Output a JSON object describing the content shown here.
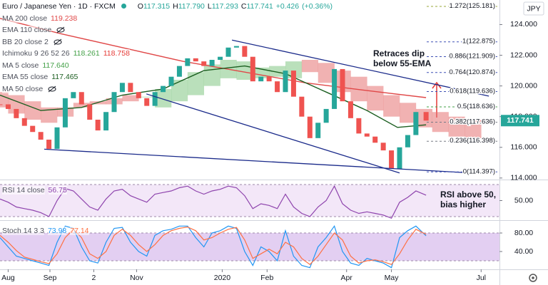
{
  "chart_data": [
    {
      "type": "candlestick",
      "title": "Euro / Japanese Yen · 1D · FXCM",
      "ohlc_labels": [
        "O",
        "H",
        "L",
        "C"
      ],
      "ohlc": [
        117.315,
        {
          "value": 117.79,
          "label": "117.790"
        },
        117.293,
        117.741
      ],
      "change": {
        "value": 0.426,
        "label": "+0.426"
      },
      "change_pct": {
        "value": 0.36,
        "label": "(+0.36%)"
      },
      "currency": "JPY",
      "last_price": 117.741,
      "up_color": "#26a69a",
      "down_color": "#ef5350",
      "xlim": [
        0,
        245
      ],
      "ylim": [
        113.9,
        125.6
      ],
      "yticks": [
        {
          "value": 114,
          "label": "114.000"
        },
        {
          "value": 116,
          "label": "116.000"
        },
        {
          "value": 118,
          "label": "118.000"
        },
        {
          "value": 120,
          "label": "120.000"
        },
        {
          "value": 122,
          "label": "122.000"
        },
        {
          "value": 124,
          "label": "124.000"
        }
      ],
      "x": [
        0,
        4,
        8,
        12,
        16,
        20,
        24,
        28,
        32,
        36,
        40,
        44,
        48,
        52,
        56,
        60,
        64,
        68,
        72,
        76,
        80,
        84,
        88,
        92,
        96,
        100,
        104,
        108,
        112,
        116,
        120,
        124,
        128,
        132,
        136,
        140,
        144,
        148,
        152,
        156,
        160,
        164,
        168,
        172,
        176,
        180,
        184,
        188,
        192,
        196,
        200,
        204,
        209
      ],
      "values": [
        118.8,
        118.5,
        117.9,
        117.4,
        117.0,
        116.5,
        115.9,
        117.3,
        119.2,
        119.6,
        118.8,
        117.8,
        117.1,
        118.3,
        119.6,
        120.2,
        119.6,
        119.2,
        118.7,
        119.6,
        120.0,
        120.6,
        121.3,
        121.8,
        121.6,
        121.3,
        121.7,
        121.9,
        122.5,
        122.6,
        121.9,
        120.3,
        120.6,
        120.3,
        119.6,
        121.0,
        119.3,
        118.0,
        116.6,
        117.6,
        118.5,
        121.1,
        119.0,
        117.9,
        116.9,
        116.7,
        116.3,
        115.8,
        114.6,
        116.0,
        116.8,
        118.3,
        117.741
      ],
      "series": [
        {
          "name": "MA 200 close",
          "color": "#e04848",
          "last": [
            119.238
          ],
          "x": [
            0,
            30,
            60,
            90,
            120,
            150,
            180,
            209
          ],
          "values": [
            124.4,
            123.4,
            122.5,
            121.6,
            120.9,
            120.2,
            119.7,
            119.24
          ]
        },
        {
          "name": "EMA 110 close",
          "hidden": true
        },
        {
          "name": "BB 20 close 2",
          "hidden": true
        },
        {
          "name": "Ichimoku 9 26 52 26",
          "last": [
            118.261,
            118.758
          ],
          "value_colors": [
            "#43a047",
            "#e53935"
          ],
          "up_color": "#81c784",
          "down_color": "#e57373",
          "x": [
            0,
            8,
            16,
            24,
            32,
            40,
            48,
            56,
            64,
            72,
            80,
            88,
            96,
            104,
            112,
            120,
            128,
            136,
            144,
            152,
            160,
            168,
            176,
            184,
            192,
            200,
            208,
            216,
            224,
            232
          ],
          "span_a": [
            118.6,
            118.2,
            117.8,
            117.6,
            118.0,
            118.6,
            118.8,
            118.8,
            119.0,
            119.3,
            119.8,
            120.4,
            120.9,
            121.4,
            121.7,
            121.6,
            121.2,
            121.3,
            121.6,
            120.9,
            120.2,
            119.6,
            119.0,
            118.4,
            118.0,
            117.6,
            117.3,
            117.0,
            116.7,
            116.6
          ],
          "span_b": [
            119.6,
            119.4,
            119.0,
            118.6,
            118.6,
            118.9,
            119.0,
            119.2,
            119.4,
            119.3,
            118.6,
            119.0,
            119.4,
            120.0,
            120.5,
            120.4,
            120.5,
            120.6,
            120.5,
            121.7,
            121.5,
            121.0,
            120.6,
            120.0,
            119.4,
            118.9,
            118.5,
            118.3,
            118.0,
            117.8
          ]
        },
        {
          "name": "MA 5 close",
          "color": "#43a047",
          "last": [
            {
              "value": 117.64,
              "label": "117.640"
            }
          ]
        },
        {
          "name": "EMA 55 close",
          "color": "#1b5e20",
          "last": [
            117.465
          ],
          "x": [
            0,
            20,
            40,
            60,
            80,
            100,
            120,
            140,
            160,
            180,
            195,
            209
          ],
          "values": [
            119.4,
            118.4,
            118.6,
            119.4,
            119.8,
            121.0,
            121.3,
            120.8,
            119.6,
            118.4,
            117.3,
            117.465
          ]
        },
        {
          "name": "MA 50 close",
          "hidden": true
        }
      ],
      "trendlines": [
        {
          "x": [
            113.8,
            239.8
          ],
          "y": [
            122.99,
            119.34
          ]
        },
        {
          "x": [
            71.8,
            196
          ],
          "y": [
            119.48,
            114.33
          ]
        },
        {
          "x": [
            21.7,
            231
          ],
          "y": [
            115.88,
            114.33
          ]
        }
      ],
      "trendline_color": "#1a2a8a",
      "fib_levels": [
        {
          "value": 125.181,
          "label": "1.272(125.181)",
          "color": "#9aa83a"
        },
        {
          "value": 122.875,
          "label": "1(122.875)",
          "color": "#3f51b5"
        },
        {
          "value": 121.909,
          "label": "0.886(121.909)",
          "color": "#3f51b5"
        },
        {
          "value": 120.874,
          "label": "0.764(120.874)",
          "color": "#3f51b5"
        },
        {
          "value": 119.636,
          "label": "0.618(119.636)",
          "color": "#3f51b5"
        },
        {
          "value": 118.636,
          "label": "0.5(118.636)",
          "color": "#43a047"
        },
        {
          "value": 117.636,
          "label": "0.382(117.636)",
          "color": "#787b86"
        },
        {
          "value": 116.398,
          "label": "0.236(116.398)",
          "color": "#787b86"
        },
        {
          "value": 114.397,
          "label": "0(114.397)",
          "color": "#3f51b5"
        }
      ],
      "annotation": [
        "Retraces dip",
        "below 55-EMA"
      ]
    },
    {
      "type": "line",
      "title": "RSI 14 close",
      "xlim": [
        0,
        245
      ],
      "ylim": [
        25.6,
        75.3
      ],
      "yticks": [
        {
          "value": 50,
          "label": "50.00"
        }
      ],
      "bands": [
        30,
        70
      ],
      "x": [
        0,
        4,
        8,
        12,
        16,
        20,
        24,
        28,
        32,
        36,
        40,
        44,
        48,
        52,
        56,
        60,
        64,
        68,
        72,
        76,
        80,
        84,
        88,
        92,
        96,
        100,
        104,
        108,
        112,
        116,
        120,
        124,
        128,
        132,
        136,
        140,
        144,
        148,
        152,
        156,
        160,
        164,
        168,
        172,
        176,
        180,
        184,
        188,
        192,
        196,
        200,
        204,
        209
      ],
      "series": [
        {
          "color": "#8e44ad",
          "last": [
            56.75
          ],
          "values": [
            52,
            48,
            42,
            40,
            38,
            35,
            30,
            50,
            65,
            62,
            52,
            42,
            38,
            52,
            62,
            64,
            56,
            52,
            48,
            58,
            60,
            62,
            66,
            68,
            62,
            58,
            62,
            64,
            68,
            66,
            56,
            40,
            46,
            44,
            40,
            58,
            42,
            34,
            30,
            42,
            50,
            68,
            46,
            38,
            34,
            36,
            34,
            32,
            28,
            48,
            54,
            62,
            56.75
          ]
        }
      ],
      "annotation": [
        "RSI above 50,",
        "bias higher"
      ]
    },
    {
      "type": "line",
      "title": "Stoch 14 3 3",
      "xlim": [
        0,
        245
      ],
      "ylim": [
        1.5,
        106.2
      ],
      "yticks": [
        {
          "value": 80,
          "label": "80.00"
        },
        {
          "value": 40,
          "label": "40.00"
        }
      ],
      "bands": [
        20,
        80
      ],
      "x": [
        0,
        4,
        8,
        12,
        16,
        20,
        24,
        28,
        32,
        36,
        40,
        44,
        48,
        52,
        56,
        60,
        64,
        68,
        72,
        76,
        80,
        84,
        88,
        92,
        96,
        100,
        104,
        108,
        112,
        116,
        120,
        124,
        128,
        132,
        136,
        140,
        144,
        148,
        152,
        156,
        160,
        164,
        168,
        172,
        176,
        180,
        184,
        188,
        192,
        196,
        200,
        204,
        209
      ],
      "series": [
        {
          "color": "#2196f3",
          "last": [
            73.98
          ],
          "values": [
            70,
            50,
            30,
            25,
            20,
            15,
            10,
            60,
            95,
            90,
            50,
            20,
            15,
            60,
            90,
            92,
            60,
            40,
            30,
            75,
            85,
            88,
            95,
            95,
            70,
            50,
            80,
            85,
            95,
            90,
            40,
            10,
            50,
            40,
            20,
            85,
            30,
            10,
            5,
            50,
            70,
            95,
            40,
            15,
            10,
            25,
            20,
            15,
            5,
            70,
            85,
            95,
            73.98
          ]
        },
        {
          "color": "#ff7043",
          "last": [
            77.14
          ],
          "values": [
            75,
            60,
            42,
            28,
            23,
            18,
            14,
            35,
            70,
            88,
            70,
            35,
            25,
            40,
            75,
            88,
            75,
            55,
            40,
            55,
            75,
            85,
            90,
            93,
            85,
            65,
            70,
            80,
            88,
            92,
            65,
            25,
            35,
            45,
            35,
            60,
            50,
            25,
            12,
            30,
            55,
            80,
            65,
            30,
            15,
            20,
            22,
            18,
            12,
            35,
            65,
            88,
            77.14
          ]
        }
      ],
      "xticks": [
        {
          "value": 4,
          "label": "Aug"
        },
        {
          "value": 24.5,
          "label": "Sep"
        },
        {
          "value": 46,
          "label": "2"
        },
        {
          "value": 67,
          "label": "Nov"
        },
        {
          "value": 109,
          "label": "2020"
        },
        {
          "value": 131,
          "label": "Feb"
        },
        {
          "value": 170,
          "label": "Apr"
        },
        {
          "value": 192,
          "label": "May"
        },
        {
          "value": 236,
          "label": "Jul"
        }
      ]
    }
  ]
}
